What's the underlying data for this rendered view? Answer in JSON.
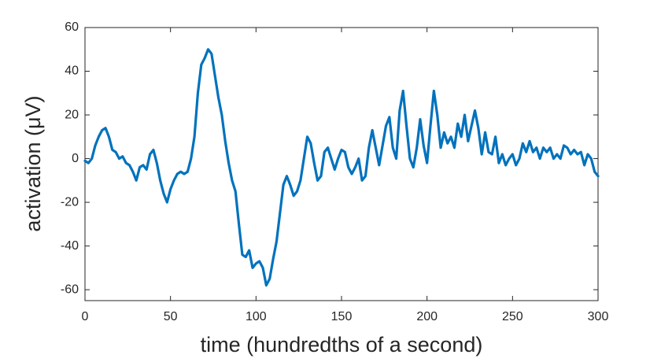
{
  "chart_data": {
    "type": "line",
    "x_label": "time (hundredths of a second)",
    "y_label": "activation (μV)",
    "x": [
      0,
      2,
      4,
      6,
      8,
      10,
      12,
      14,
      16,
      18,
      20,
      22,
      24,
      26,
      28,
      30,
      32,
      34,
      36,
      38,
      40,
      42,
      44,
      46,
      48,
      50,
      52,
      54,
      56,
      58,
      60,
      62,
      64,
      66,
      68,
      70,
      72,
      74,
      76,
      78,
      80,
      82,
      84,
      86,
      88,
      90,
      92,
      94,
      96,
      98,
      100,
      102,
      104,
      106,
      108,
      110,
      112,
      114,
      116,
      118,
      120,
      122,
      124,
      126,
      128,
      130,
      132,
      134,
      136,
      138,
      140,
      142,
      144,
      146,
      148,
      150,
      152,
      154,
      156,
      158,
      160,
      162,
      164,
      166,
      168,
      170,
      172,
      174,
      176,
      178,
      180,
      182,
      184,
      186,
      188,
      190,
      192,
      194,
      196,
      198,
      200,
      202,
      204,
      206,
      208,
      210,
      212,
      214,
      216,
      218,
      220,
      222,
      224,
      226,
      228,
      230,
      232,
      234,
      236,
      238,
      240,
      242,
      244,
      246,
      248,
      250,
      252,
      254,
      256,
      258,
      260,
      262,
      264,
      266,
      268,
      270,
      272,
      274,
      276,
      278,
      280,
      282,
      284,
      286,
      288,
      290,
      292,
      294,
      296,
      298,
      300
    ],
    "series": [
      {
        "color": "#0072bd",
        "values": [
          -1,
          -2,
          0,
          6,
          10,
          13,
          14,
          10,
          4,
          3,
          0,
          1,
          -2,
          -3,
          -6,
          -10,
          -4,
          -3,
          -5,
          2,
          4,
          -2,
          -10,
          -16,
          -20,
          -14,
          -10,
          -7,
          -6,
          -7,
          -6,
          0,
          10,
          30,
          43,
          46,
          50,
          48,
          38,
          28,
          20,
          8,
          -2,
          -10,
          -15,
          -30,
          -44,
          -45,
          -42,
          -50,
          -48,
          -47,
          -50,
          -58,
          -55,
          -46,
          -38,
          -25,
          -12,
          -8,
          -12,
          -17,
          -15,
          -10,
          0,
          10,
          7,
          -2,
          -10,
          -8,
          3,
          5,
          0,
          -5,
          0,
          4,
          3,
          -4,
          -7,
          -4,
          0,
          -10,
          -8,
          5,
          13,
          5,
          -3,
          6,
          15,
          19,
          5,
          0,
          22,
          31,
          15,
          0,
          -4,
          5,
          18,
          6,
          -2,
          15,
          31,
          20,
          5,
          12,
          7,
          10,
          5,
          16,
          10,
          20,
          8,
          15,
          22,
          14,
          2,
          12,
          3,
          2,
          10,
          -2,
          2,
          -3,
          0,
          2,
          -3,
          0,
          7,
          3,
          8,
          3,
          5,
          0,
          5,
          3,
          5,
          0,
          2,
          0,
          6,
          5,
          2,
          4,
          2,
          3,
          -3,
          2,
          0,
          -6,
          -8
        ]
      }
    ],
    "xlim": [
      0,
      300
    ],
    "xticks": [
      0,
      50,
      100,
      150,
      200,
      250,
      300
    ],
    "ylim": [
      -65,
      60
    ],
    "yticks": [
      -60,
      -40,
      -20,
      0,
      20,
      40,
      60
    ]
  }
}
